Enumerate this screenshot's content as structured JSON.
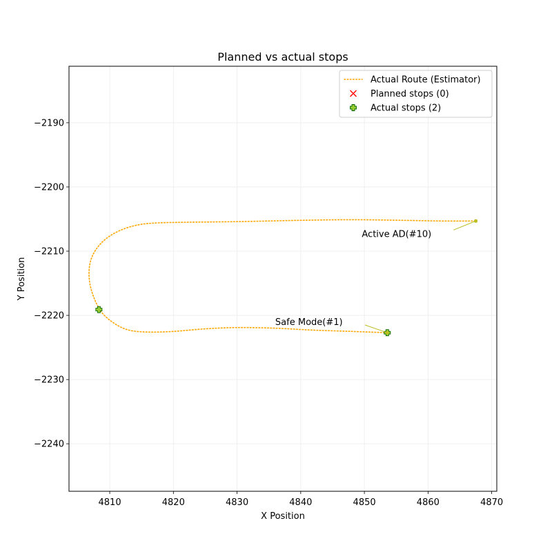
{
  "chart_data": {
    "type": "scatter",
    "title": "Planned vs actual stops",
    "xlabel": "X Position",
    "ylabel": "Y Position",
    "xlim": [
      4803.6,
      4870.8
    ],
    "ylim": [
      -2247.4,
      -2181.2
    ],
    "xticks": [
      4810,
      4820,
      4830,
      4840,
      4850,
      4860,
      4870
    ],
    "yticks": [
      -2190,
      -2200,
      -2210,
      -2220,
      -2230,
      -2240
    ],
    "xtick_labels": [
      "4810",
      "4820",
      "4830",
      "4840",
      "4850",
      "4860",
      "4870"
    ],
    "ytick_labels": [
      "−2190",
      "−2200",
      "−2210",
      "−2220",
      "−2230",
      "−2240"
    ],
    "grid": true,
    "legend_position": "top-right",
    "legend": [
      {
        "label": "Actual Route (Estimator)",
        "marker": "dotted-line",
        "color": "#ffa500"
      },
      {
        "label": "Planned stops (0)",
        "marker": "x",
        "color": "#ff0000"
      },
      {
        "label": "Actual stops (2)",
        "marker": "plus",
        "color": "#9acd32"
      }
    ],
    "series": [
      {
        "name": "Actual Route (Estimator)",
        "kind": "line",
        "style": "dotted",
        "color": "#ffa500",
        "points": [
          [
            4853.6,
            -2222.7
          ],
          [
            4848.0,
            -2222.5
          ],
          [
            4842.0,
            -2222.3
          ],
          [
            4836.0,
            -2222.0
          ],
          [
            4830.0,
            -2221.9
          ],
          [
            4825.0,
            -2222.1
          ],
          [
            4820.0,
            -2222.5
          ],
          [
            4816.0,
            -2222.6
          ],
          [
            4813.0,
            -2222.3
          ],
          [
            4810.8,
            -2221.3
          ],
          [
            4808.8,
            -2219.6
          ],
          [
            4807.5,
            -2217.2
          ],
          [
            4806.8,
            -2214.5
          ],
          [
            4806.9,
            -2211.9
          ],
          [
            4807.8,
            -2209.8
          ],
          [
            4809.5,
            -2208.0
          ],
          [
            4811.8,
            -2206.7
          ],
          [
            4814.5,
            -2205.9
          ],
          [
            4817.5,
            -2205.6
          ],
          [
            4822.0,
            -2205.5
          ],
          [
            4830.0,
            -2205.4
          ],
          [
            4840.0,
            -2205.2
          ],
          [
            4848.0,
            -2205.1
          ],
          [
            4856.0,
            -2205.2
          ],
          [
            4862.0,
            -2205.3
          ],
          [
            4867.5,
            -2205.3
          ]
        ]
      },
      {
        "name": "Planned stops (0)",
        "kind": "marker",
        "marker": "x",
        "color": "#ff0000",
        "points": []
      },
      {
        "name": "Actual stops (2)",
        "kind": "marker",
        "marker": "plus",
        "color": "#9acd32",
        "points": [
          [
            4808.3,
            -2219.1
          ],
          [
            4853.6,
            -2222.7
          ]
        ]
      }
    ],
    "annotations": [
      {
        "text": "Active AD(#10)",
        "point": [
          4867.5,
          -2205.3
        ],
        "text_anchor": [
          4864.0,
          -2206.7
        ],
        "text_pos": [
          4849.6,
          -2207.8
        ],
        "color": "#bcbd22"
      },
      {
        "text": "Safe Mode(#1)",
        "point": [
          4853.6,
          -2222.7
        ],
        "text_anchor": [
          4850.1,
          -2221.5
        ],
        "text_pos": [
          4836.0,
          -2221.5
        ],
        "color": "#bcbd22"
      }
    ]
  }
}
